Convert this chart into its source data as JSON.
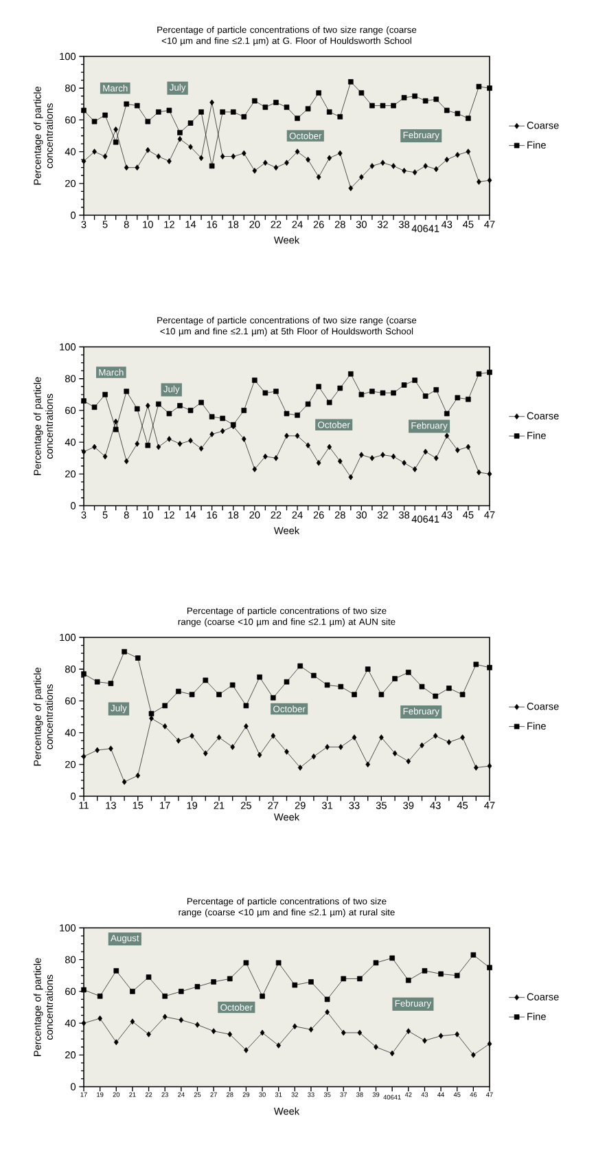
{
  "chart_data": [
    {
      "type": "line",
      "title": "Percentage of particle concentrations of two size range (coarse <10 µm and fine ≤2.1 µm) at G. Floor of Houldsworth School",
      "xlabel": "Week",
      "ylabel": "Percentage of particle concentrations",
      "categories": [
        "3",
        null,
        "5",
        null,
        "8",
        null,
        "10",
        null,
        "12",
        null,
        "14",
        null,
        "16",
        null,
        "18",
        null,
        "20",
        null,
        "22",
        null,
        "24",
        null,
        "26",
        null,
        "28",
        null,
        "30",
        null,
        "32",
        null,
        "38",
        null,
        "40641",
        null,
        "43",
        null,
        "45",
        null,
        "47"
      ],
      "ylim": [
        0,
        100
      ],
      "yticks": [
        0,
        20,
        40,
        60,
        80,
        100
      ],
      "legend": "right",
      "annotations": [
        "March",
        "July",
        "October",
        "February"
      ],
      "series": [
        {
          "name": "Coarse",
          "color": "#000000",
          "marker": "diamond",
          "values": [
            34,
            40,
            37,
            54,
            30,
            30,
            41,
            37,
            34,
            48,
            43,
            36,
            71,
            37,
            37,
            39,
            28,
            33,
            30,
            33,
            40,
            35,
            24,
            36,
            39,
            17,
            24,
            31,
            33,
            31,
            28,
            27,
            31,
            29,
            35,
            38,
            40,
            21,
            22
          ]
        },
        {
          "name": "Fine",
          "color": "#000000",
          "marker": "square",
          "values": [
            66,
            59,
            63,
            46,
            70,
            69,
            59,
            65,
            66,
            52,
            58,
            65,
            31,
            65,
            65,
            62,
            72,
            68,
            71,
            68,
            61,
            67,
            77,
            65,
            62,
            84,
            77,
            69,
            69,
            69,
            74,
            75,
            72,
            73,
            66,
            64,
            61,
            81,
            80
          ]
        }
      ]
    },
    {
      "type": "line",
      "title": "Percentage of particle concentrations of two size range (coarse <10 µm and fine ≤2.1 µm) at 5th Floor of Houldsworth School",
      "xlabel": "Week",
      "ylabel": "Percentage of particle concentrations",
      "categories": [
        "3",
        null,
        "5",
        null,
        "8",
        null,
        "10",
        null,
        "12",
        null,
        "14",
        null,
        "16",
        null,
        "18",
        null,
        "20",
        null,
        "22",
        null,
        "24",
        null,
        "26",
        null,
        "28",
        null,
        "30",
        null,
        "32",
        null,
        "38",
        null,
        "40641",
        null,
        "43",
        null,
        "45",
        null,
        "47"
      ],
      "ylim": [
        0,
        100
      ],
      "yticks": [
        0,
        20,
        40,
        60,
        80,
        100
      ],
      "legend": "right",
      "annotations": [
        "March",
        "July",
        "October",
        "February"
      ],
      "series": [
        {
          "name": "Coarse",
          "color": "#000000",
          "marker": "diamond",
          "values": [
            34,
            37,
            31,
            53,
            28,
            39,
            63,
            37,
            42,
            39,
            41,
            36,
            45,
            47,
            50,
            42,
            23,
            31,
            30,
            44,
            44,
            38,
            27,
            37,
            28,
            18,
            32,
            30,
            32,
            31,
            27,
            23,
            34,
            30,
            44,
            35,
            37,
            21,
            20
          ]
        },
        {
          "name": "Fine",
          "color": "#000000",
          "marker": "square",
          "values": [
            66,
            62,
            70,
            48,
            72,
            61,
            38,
            64,
            58,
            63,
            60,
            65,
            56,
            55,
            51,
            60,
            79,
            71,
            72,
            58,
            57,
            64,
            75,
            65,
            74,
            83,
            70,
            72,
            71,
            71,
            76,
            79,
            69,
            73,
            58,
            68,
            67,
            83,
            84
          ]
        }
      ]
    },
    {
      "type": "line",
      "title": "Percentage of particle concentrations of two size range (coarse <10 µm and fine ≤2.1 µm) at AUN site",
      "xlabel": "Week",
      "ylabel": "Percentage of particle concentrations",
      "categories": [
        "11",
        null,
        "13",
        null,
        "15",
        null,
        "17",
        null,
        "19",
        null,
        "21",
        null,
        "25",
        null,
        "27",
        null,
        "29",
        null,
        "31",
        null,
        "33",
        null,
        "35",
        null,
        "39",
        null,
        "43",
        null,
        "45",
        null,
        "47"
      ],
      "ylim": [
        0,
        100
      ],
      "yticks": [
        0,
        20,
        40,
        60,
        80,
        100
      ],
      "legend": "right",
      "annotations": [
        "July",
        "October",
        "February"
      ],
      "series": [
        {
          "name": "Coarse",
          "color": "#000000",
          "marker": "diamond",
          "values": [
            25,
            29,
            30,
            9,
            13,
            49,
            44,
            35,
            38,
            27,
            37,
            31,
            44,
            26,
            38,
            28,
            18,
            25,
            31,
            31,
            37,
            20,
            37,
            27,
            22,
            32,
            38,
            34,
            37,
            18,
            19
          ]
        },
        {
          "name": "Fine",
          "color": "#000000",
          "marker": "square",
          "values": [
            77,
            72,
            71,
            91,
            87,
            52,
            57,
            66,
            64,
            73,
            64,
            70,
            57,
            75,
            62,
            72,
            82,
            76,
            70,
            69,
            64,
            80,
            64,
            74,
            78,
            69,
            63,
            68,
            64,
            83,
            81
          ]
        }
      ]
    },
    {
      "type": "line",
      "title": "Percentage of particle concentrations of two size range (coarse <10 µm and fine ≤2.1 µm) at rural site",
      "xlabel": "Week",
      "ylabel": "Percentage of particle concentrations",
      "categories": [
        "17",
        "19",
        "20",
        "21",
        "22",
        "23",
        "24",
        "25",
        "27",
        "28",
        "29",
        "30",
        "31",
        "32",
        "33",
        "35",
        "37",
        "38",
        "39",
        "40641",
        "42",
        "43",
        "44",
        "45",
        "46",
        "47"
      ],
      "ylim": [
        0,
        100
      ],
      "yticks": [
        0,
        20,
        40,
        60,
        80,
        100
      ],
      "legend": "right",
      "annotations": [
        "August",
        "October",
        "February"
      ],
      "series": [
        {
          "name": "Coarse",
          "color": "#000000",
          "marker": "diamond",
          "values": [
            40,
            43,
            28,
            41,
            33,
            44,
            42,
            39,
            35,
            33,
            23,
            34,
            26,
            38,
            36,
            47,
            34,
            34,
            25,
            21,
            35,
            29,
            32,
            33,
            20,
            27
          ]
        },
        {
          "name": "Fine",
          "color": "#000000",
          "marker": "square",
          "values": [
            61,
            57,
            73,
            60,
            69,
            57,
            60,
            63,
            66,
            68,
            78,
            57,
            78,
            64,
            66,
            55,
            68,
            68,
            78,
            81,
            67,
            73,
            71,
            70,
            83,
            75
          ]
        }
      ]
    }
  ]
}
